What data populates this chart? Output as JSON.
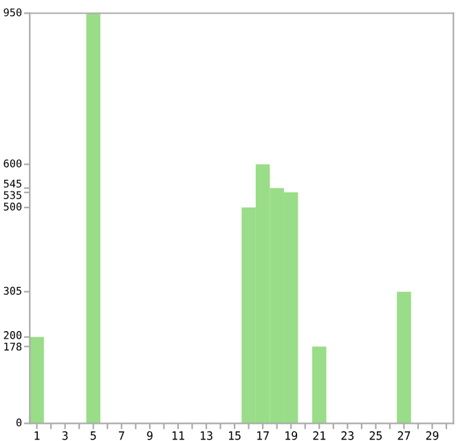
{
  "chart_data": {
    "type": "bar",
    "categories": [
      "1",
      null,
      "3",
      null,
      "5",
      null,
      "7",
      null,
      "9",
      null,
      "11",
      null,
      "13",
      null,
      "15",
      null,
      "17",
      null,
      "19",
      null,
      "21",
      null,
      "23",
      null,
      "25",
      null,
      "27",
      null,
      "29",
      null
    ],
    "values": [
      200,
      0,
      0,
      0,
      950,
      0,
      0,
      0,
      0,
      0,
      0,
      0,
      0,
      0,
      0,
      500,
      600,
      545,
      535,
      0,
      178,
      0,
      0,
      0,
      0,
      0,
      305,
      0,
      0,
      0
    ],
    "color": "#99dd88",
    "ylim": [
      0,
      950
    ],
    "yticks": [
      0,
      178,
      200,
      305,
      500,
      535,
      545,
      600,
      950
    ],
    "grid": false
  }
}
